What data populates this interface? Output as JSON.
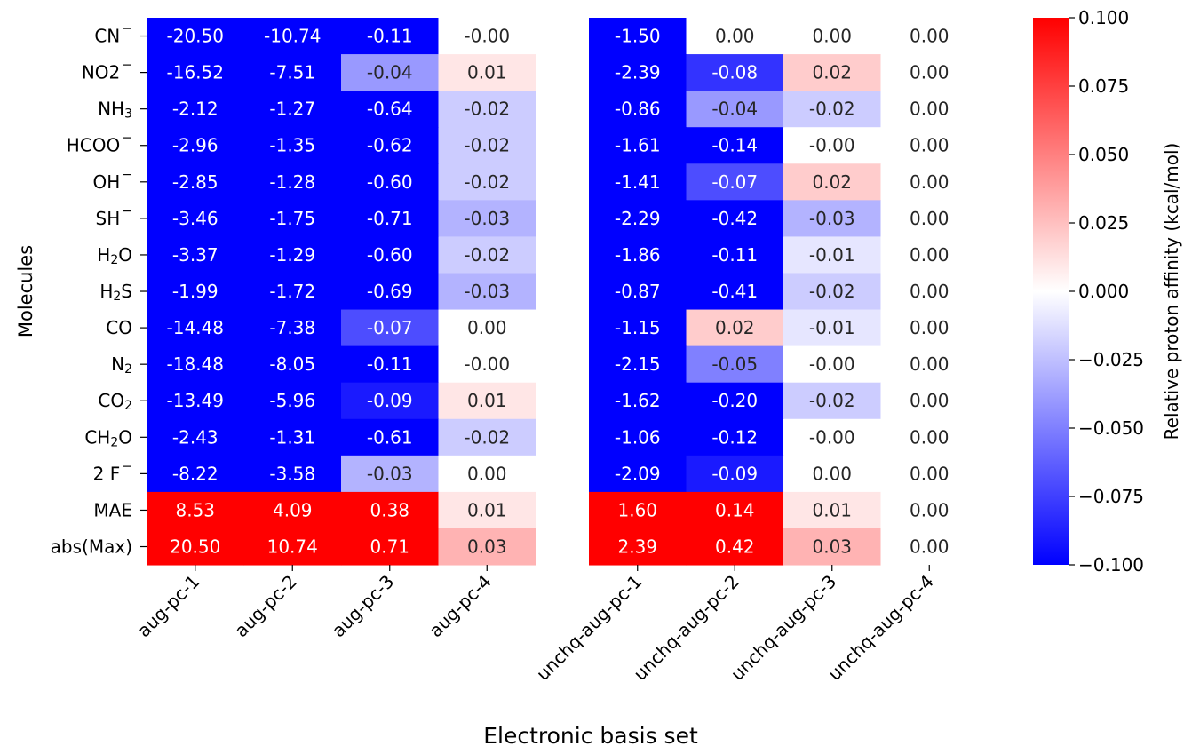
{
  "chart_data": {
    "type": "heatmap",
    "xlabel": "Electronic basis set",
    "ylabel": "Molecules",
    "colorbar_label": "Relative proton affinity (kcal/mol)",
    "colorbar_ticks": [
      "0.100",
      "0.075",
      "0.050",
      "0.025",
      "0.000",
      "−0.025",
      "−0.050",
      "−0.075",
      "−0.100"
    ],
    "vmin": -0.1,
    "vmax": 0.1,
    "colormap": [
      "#0000ff",
      "#ffffff",
      "#ff0000"
    ],
    "rows": [
      {
        "label": "CN",
        "sup": "−"
      },
      {
        "label": "NO2",
        "sup": "−"
      },
      {
        "label": "NH",
        "sub": "3"
      },
      {
        "label": "HCOO",
        "sup": "−"
      },
      {
        "label": "OH",
        "sup": "−"
      },
      {
        "label": "SH",
        "sup": "−"
      },
      {
        "label": "H",
        "sub": "2",
        "after": "O"
      },
      {
        "label": "H",
        "sub": "2",
        "after": "S"
      },
      {
        "label": "CO"
      },
      {
        "label": "N",
        "sub": "2"
      },
      {
        "label": "CO",
        "sub": "2"
      },
      {
        "label": "CH",
        "sub": "2",
        "after": "O"
      },
      {
        "label": "2 F",
        "sup": "−"
      },
      {
        "label": "MAE"
      },
      {
        "label": "abs(Max)"
      }
    ],
    "panels": [
      {
        "columns": [
          "aug-pc-1",
          "aug-pc-2",
          "aug-pc-3",
          "aug-pc-4"
        ],
        "values": [
          [
            "-20.50",
            "-10.74",
            "-0.11",
            "-0.00"
          ],
          [
            "-16.52",
            "-7.51",
            "-0.04",
            "0.01"
          ],
          [
            "-2.12",
            "-1.27",
            "-0.64",
            "-0.02"
          ],
          [
            "-2.96",
            "-1.35",
            "-0.62",
            "-0.02"
          ],
          [
            "-2.85",
            "-1.28",
            "-0.60",
            "-0.02"
          ],
          [
            "-3.46",
            "-1.75",
            "-0.71",
            "-0.03"
          ],
          [
            "-3.37",
            "-1.29",
            "-0.60",
            "-0.02"
          ],
          [
            "-1.99",
            "-1.72",
            "-0.69",
            "-0.03"
          ],
          [
            "-14.48",
            "-7.38",
            "-0.07",
            "0.00"
          ],
          [
            "-18.48",
            "-8.05",
            "-0.11",
            "-0.00"
          ],
          [
            "-13.49",
            "-5.96",
            "-0.09",
            "0.01"
          ],
          [
            "-2.43",
            "-1.31",
            "-0.61",
            "-0.02"
          ],
          [
            "-8.22",
            "-3.58",
            "-0.03",
            "0.00"
          ],
          [
            "8.53",
            "4.09",
            "0.38",
            "0.01"
          ],
          [
            "20.50",
            "10.74",
            "0.71",
            "0.03"
          ]
        ]
      },
      {
        "columns": [
          "unchq-aug-pc-1",
          "unchq-aug-pc-2",
          "unchq-aug-pc-3",
          "unchq-aug-pc-4"
        ],
        "values": [
          [
            "-1.50",
            "0.00",
            "0.00",
            "0.00"
          ],
          [
            "-2.39",
            "-0.08",
            "0.02",
            "0.00"
          ],
          [
            "-0.86",
            "-0.04",
            "-0.02",
            "0.00"
          ],
          [
            "-1.61",
            "-0.14",
            "-0.00",
            "0.00"
          ],
          [
            "-1.41",
            "-0.07",
            "0.02",
            "0.00"
          ],
          [
            "-2.29",
            "-0.42",
            "-0.03",
            "0.00"
          ],
          [
            "-1.86",
            "-0.11",
            "-0.01",
            "0.00"
          ],
          [
            "-0.87",
            "-0.41",
            "-0.02",
            "0.00"
          ],
          [
            "-1.15",
            "0.02",
            "-0.01",
            "0.00"
          ],
          [
            "-2.15",
            "-0.05",
            "-0.00",
            "0.00"
          ],
          [
            "-1.62",
            "-0.20",
            "-0.02",
            "0.00"
          ],
          [
            "-1.06",
            "-0.12",
            "-0.00",
            "0.00"
          ],
          [
            "-2.09",
            "-0.09",
            "0.00",
            "0.00"
          ],
          [
            "1.60",
            "0.14",
            "0.01",
            "0.00"
          ],
          [
            "2.39",
            "0.42",
            "0.03",
            "0.00"
          ]
        ]
      }
    ]
  }
}
